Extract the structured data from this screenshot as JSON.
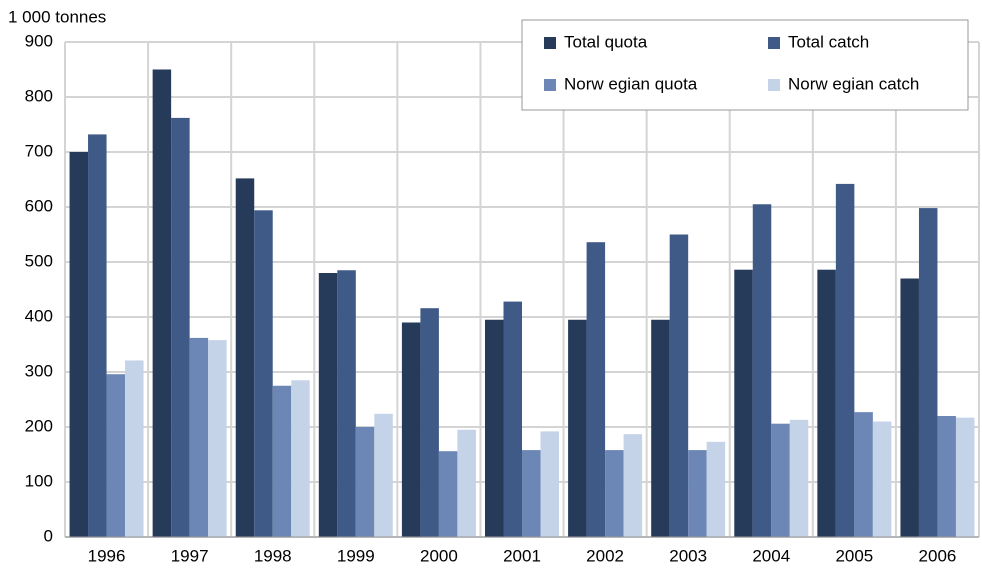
{
  "chart_data": {
    "type": "bar",
    "y_label": "1 000 tonnes",
    "categories": [
      "1996",
      "1997",
      "1998",
      "1999",
      "2000",
      "2001",
      "2002",
      "2003",
      "2004",
      "2005",
      "2006"
    ],
    "series": [
      {
        "name": "Total quota",
        "color": "#263a5a",
        "values": [
          700,
          850,
          652,
          480,
          390,
          395,
          395,
          395,
          486,
          486,
          470
        ]
      },
      {
        "name": "Total catch",
        "color": "#3f5a87",
        "values": [
          732,
          762,
          594,
          485,
          416,
          428,
          536,
          550,
          605,
          642,
          598
        ]
      },
      {
        "name": "Norw egian quota",
        "color": "#6c86b5",
        "values": [
          296,
          362,
          275,
          200,
          156,
          158,
          158,
          158,
          206,
          227,
          220
        ]
      },
      {
        "name": "Norw egian catch",
        "color": "#c5d3e8",
        "values": [
          321,
          358,
          285,
          224,
          195,
          192,
          187,
          173,
          213,
          210,
          217
        ]
      }
    ],
    "ylim": [
      0,
      900
    ],
    "yticks": [
      0,
      100,
      200,
      300,
      400,
      500,
      600,
      700,
      800,
      900
    ],
    "grid": true,
    "legend": "top-right"
  }
}
